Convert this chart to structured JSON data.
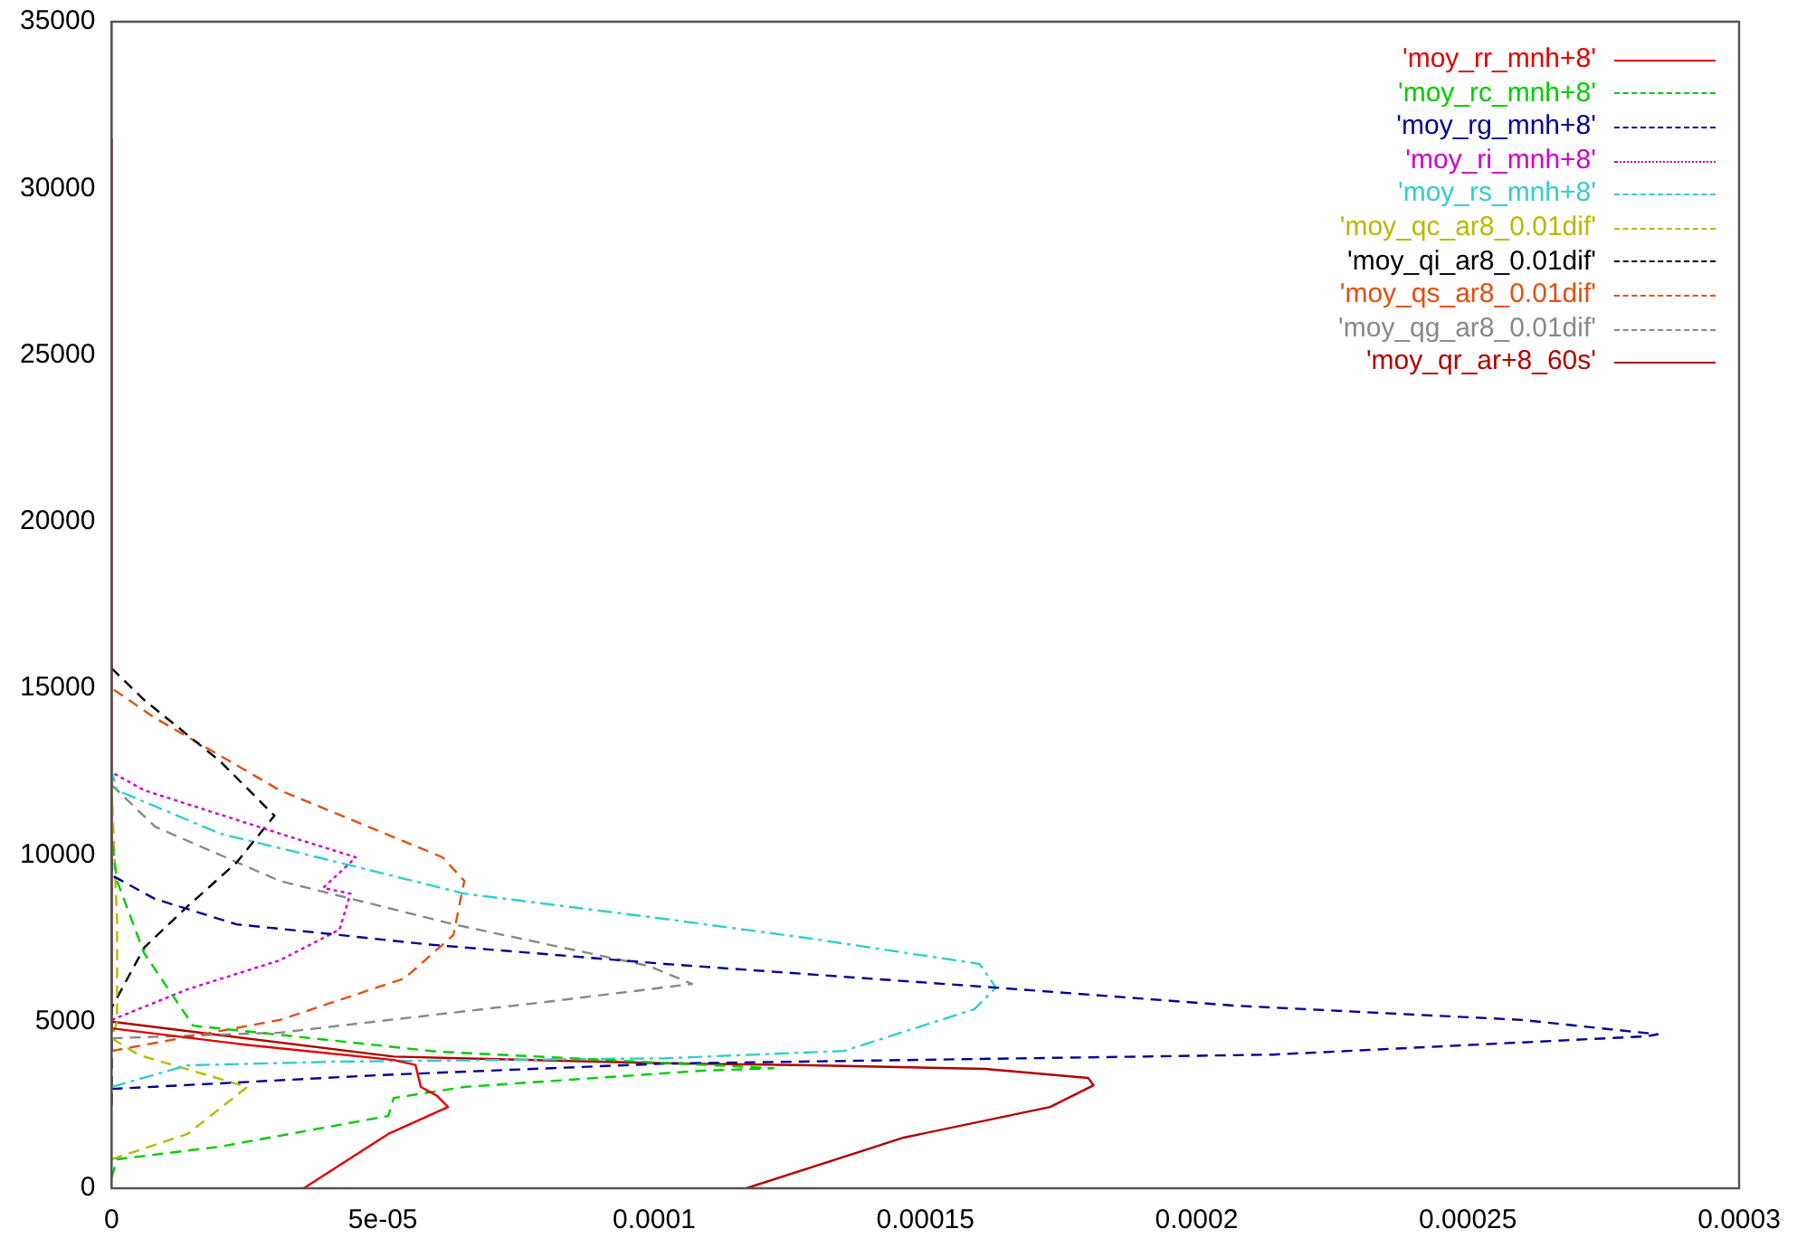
{
  "chart_data": {
    "type": "line",
    "legend": "top right",
    "xlim": [
      0,
      0.0003
    ],
    "ylim": [
      0,
      35000
    ],
    "xticks": [
      0,
      {
        "value": 5e-05,
        "label": "5e-05"
      },
      0.0001,
      0.00015,
      0.0002,
      0.00025,
      0.0003
    ],
    "yticks": [
      0,
      5000,
      10000,
      15000,
      20000,
      25000,
      30000,
      35000
    ],
    "series": [
      {
        "name": "'moy_rr_mnh+8'",
        "color": "#e00000",
        "line_style": "solid",
        "x": [
          3.54e-05,
          5.1e-05,
          6.2e-05,
          6e-05,
          5.7e-05,
          5.6e-05,
          5.2e-05,
          2.5e-05,
          0
        ],
        "values": [
          0,
          1630,
          2440,
          2770,
          3040,
          3700,
          3850,
          4300,
          4800
        ]
      },
      {
        "name": "'moy_rc_mnh+8'",
        "color": "#00cc00",
        "line_style": "dashed",
        "x": [
          0,
          1e-06,
          2e-05,
          5.1e-05,
          5.2e-05,
          6.5e-05,
          0.000109,
          0.000122,
          6e-05,
          1.5e-05,
          6e-06,
          1e-06,
          0
        ],
        "values": [
          330,
          870,
          1250,
          2170,
          2710,
          3040,
          3530,
          3600,
          4100,
          4880,
          7050,
          9220,
          10500
        ]
      },
      {
        "name": "'moy_rg_mnh+8'",
        "color": "#000099",
        "line_style": "dashed",
        "x": [
          0,
          5e-05,
          0.000102,
          0.000214,
          0.000283,
          0.000285,
          0.00026,
          0.000207,
          0.000163,
          0.000102,
          5.8e-05,
          4.2e-05,
          2.3e-05,
          8e-06,
          0,
          0
        ],
        "values": [
          2980,
          3400,
          3740,
          4010,
          4560,
          4620,
          5050,
          5480,
          6020,
          6730,
          7320,
          7600,
          7920,
          8680,
          9390,
          10600
        ]
      },
      {
        "name": "'moy_ri_mnh+8'",
        "color": "#cc00cc",
        "line_style": "dotted",
        "x": [
          0,
          1.4e-05,
          3.1e-05,
          4.2e-05,
          4.4e-05,
          3.9e-05,
          4.5e-05,
          3.1e-05,
          6e-06,
          0
        ],
        "values": [
          5050,
          5970,
          6840,
          7760,
          8840,
          9010,
          9930,
          10640,
          11940,
          12480
        ]
      },
      {
        "name": "'moy_rs_mnh+8'",
        "color": "#33cccc",
        "line_style": "dashdot",
        "x": [
          0,
          1.4e-05,
          4.2e-05,
          0.000102,
          0.000135,
          0.000159,
          0.000163,
          0.00016,
          0.000129,
          0.000102,
          6.5e-05,
          4.2e-05,
          2e-05,
          1e-06,
          0
        ],
        "values": [
          3040,
          3690,
          3800,
          3900,
          4120,
          5370,
          6020,
          6730,
          7490,
          8080,
          8840,
          9770,
          10640,
          11940,
          12500
        ]
      },
      {
        "name": "'moy_qc_ar8_0.01dif'",
        "color": "#b8b800",
        "line_style": "dashed",
        "x": [
          0,
          1.4e-05,
          2.5e-05,
          5e-06,
          0,
          1e-06,
          1e-06,
          0
        ],
        "values": [
          870,
          1630,
          3040,
          4000,
          4500,
          5000,
          8000,
          12000
        ]
      },
      {
        "name": "'moy_qi_ar8_0.01dif'",
        "color": "#000000",
        "line_style": "dashed",
        "x": [
          0,
          0,
          6e-06,
          1.4e-05,
          2.3e-05,
          3e-05,
          2e-05,
          6e-06,
          0
        ],
        "values": [
          2500,
          5420,
          7220,
          8460,
          9770,
          11180,
          12810,
          14650,
          15600
        ]
      },
      {
        "name": "'moy_qs_ar8_0.01dif'",
        "color": "#e05010",
        "line_style": "dashed",
        "x": [
          0,
          3.1e-05,
          5.4e-05,
          6.3e-05,
          6.5e-05,
          6.1e-05,
          3.1e-05,
          8e-06,
          0
        ],
        "values": [
          4120,
          5050,
          6300,
          7600,
          9220,
          9930,
          11940,
          14110,
          15000
        ]
      },
      {
        "name": "'moy_qg_ar8_0.01dif'",
        "color": "#888888",
        "line_style": "dashed",
        "x": [
          0,
          3.1e-05,
          8e-05,
          0.000107,
          9.9e-05,
          6.3e-05,
          3.1e-05,
          8e-06,
          0,
          0
        ],
        "values": [
          4500,
          4670,
          5590,
          6130,
          6670,
          7920,
          9220,
          10850,
          12100,
          13000
        ]
      },
      {
        "name": "'moy_qr_ar+8_60s'",
        "color": "#b00000",
        "line_style": "solid",
        "x": [
          0.000117,
          0.000146,
          0.000173,
          0.000181,
          0.00018,
          0.000161,
          0.000129,
          0.000102,
          5.2e-05,
          0,
          0
        ],
        "values": [
          0,
          1520,
          2440,
          3090,
          3310,
          3580,
          3690,
          3750,
          3950,
          5000,
          31500
        ]
      }
    ]
  }
}
